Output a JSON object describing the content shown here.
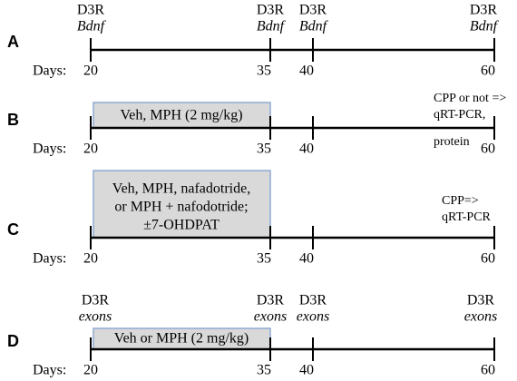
{
  "panels": [
    {
      "label": "A",
      "days_label": "Days:",
      "days": [
        20,
        35,
        40,
        60
      ],
      "markers": [
        {
          "top": "D3R",
          "bottom": "Bdnf"
        },
        {
          "top": "D3R",
          "bottom": "Bdnf"
        },
        {
          "top": "D3R",
          "bottom": "Bdnf"
        },
        {
          "top": "D3R",
          "bottom": "Bdnf"
        }
      ]
    },
    {
      "label": "B",
      "days_label": "Days:",
      "days": [
        20,
        35,
        40,
        60
      ],
      "box": [
        "Veh, MPH (2 mg/kg)"
      ],
      "note": [
        "CPP or not =>",
        "qRT-PCR,",
        "protein"
      ]
    },
    {
      "label": "C",
      "days_label": "Days:",
      "days": [
        20,
        35,
        40,
        60
      ],
      "box": [
        "Veh, MPH, nafadotride,",
        "or MPH + nafodotride;",
        "±7-OHDPAT"
      ],
      "note": [
        "CPP=>",
        "qRT-PCR"
      ]
    },
    {
      "label": "D",
      "days_label": "Days:",
      "days": [
        20,
        35,
        40,
        60
      ],
      "box": [
        "Veh or MPH (2 mg/kg)"
      ],
      "markers": [
        {
          "top": "D3R",
          "bottom": "exons"
        },
        {
          "top": "D3R",
          "bottom": "exons"
        },
        {
          "top": "D3R",
          "bottom": "exons"
        },
        {
          "top": "D3R",
          "bottom": "exons"
        }
      ]
    }
  ]
}
